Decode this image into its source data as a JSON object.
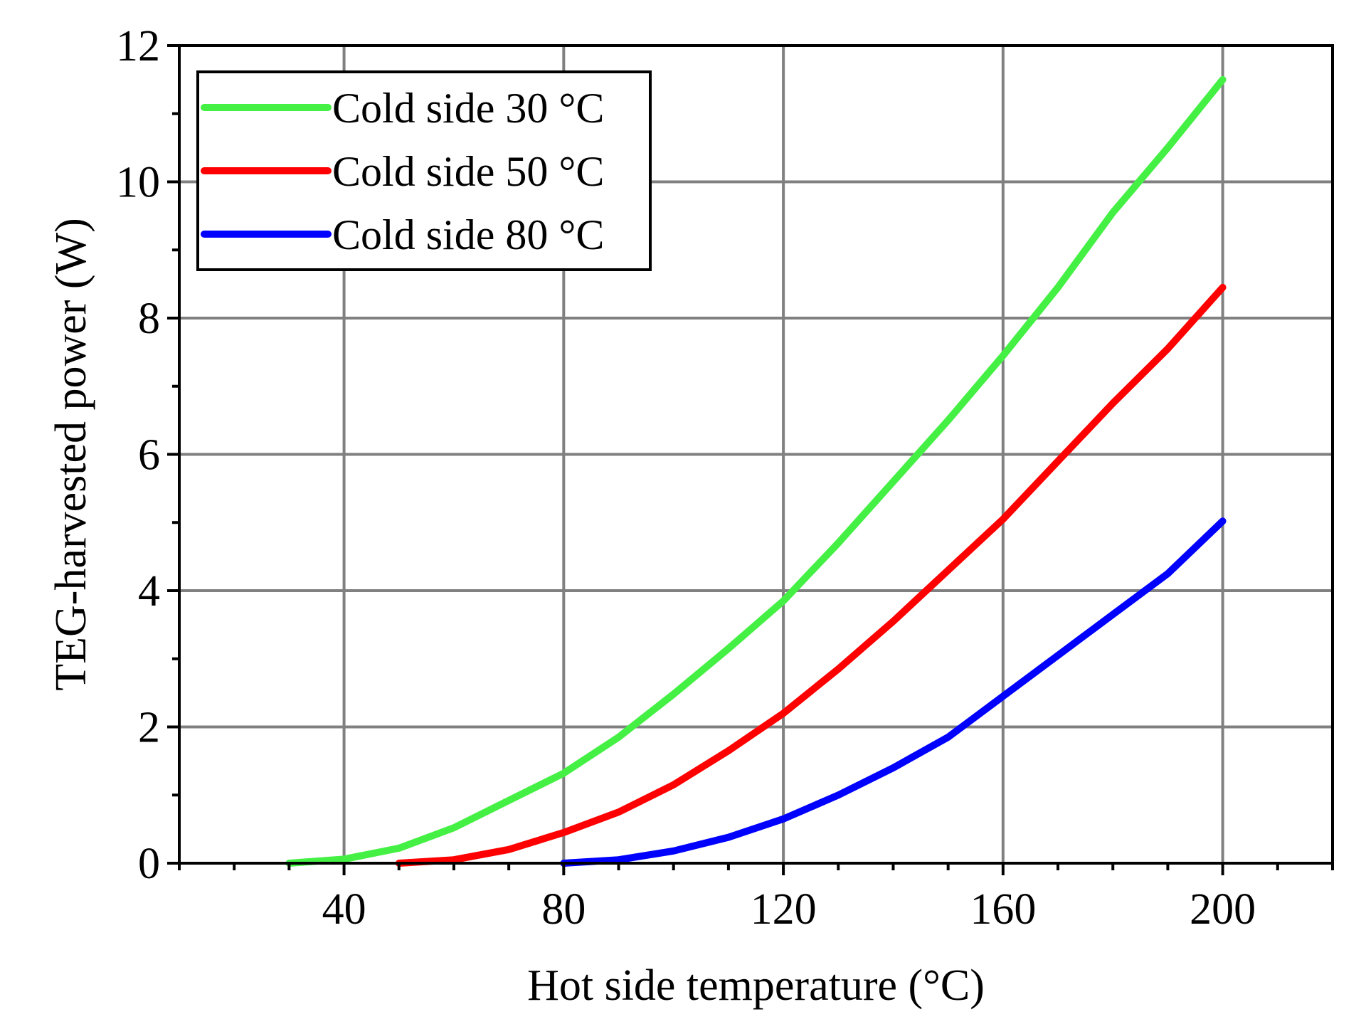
{
  "chart_data": {
    "type": "line",
    "title": "",
    "xlabel": "Hot side temperature (°C)",
    "ylabel": "TEG-harvested power (W)",
    "xlim": [
      10,
      220
    ],
    "ylim": [
      0,
      12
    ],
    "xticks": [
      40,
      80,
      120,
      160,
      200
    ],
    "xtick_labels": [
      "40",
      "80",
      "120",
      "160",
      "200"
    ],
    "yticks": [
      0,
      2,
      4,
      6,
      8,
      10,
      12
    ],
    "ytick_labels": [
      "0",
      "2",
      "4",
      "6",
      "8",
      "10",
      "12"
    ],
    "x_minor_step": 10,
    "y_minor_step": 1,
    "grid": true,
    "legend_position": "top-left",
    "series": [
      {
        "name": "Cold side 30 °C",
        "color": "#44f044",
        "x": [
          30,
          40,
          50,
          60,
          70,
          80,
          90,
          100,
          110,
          120,
          130,
          140,
          150,
          160,
          170,
          180,
          190,
          200
        ],
        "y": [
          0.0,
          0.06,
          0.22,
          0.52,
          0.92,
          1.32,
          1.85,
          2.48,
          3.15,
          3.85,
          4.7,
          5.6,
          6.5,
          7.45,
          8.45,
          9.55,
          10.5,
          11.5
        ]
      },
      {
        "name": "Cold side 50 °C",
        "color": "#ff0000",
        "x": [
          50,
          60,
          70,
          80,
          90,
          100,
          110,
          120,
          130,
          140,
          150,
          160,
          170,
          180,
          190,
          200
        ],
        "y": [
          0.0,
          0.05,
          0.2,
          0.45,
          0.75,
          1.15,
          1.65,
          2.2,
          2.85,
          3.55,
          4.3,
          5.05,
          5.9,
          6.75,
          7.55,
          8.45
        ]
      },
      {
        "name": "Cold side 80 °C",
        "color": "#0000ff",
        "x": [
          80,
          90,
          100,
          110,
          120,
          130,
          140,
          150,
          160,
          170,
          180,
          190,
          200
        ],
        "y": [
          0.0,
          0.05,
          0.18,
          0.38,
          0.65,
          1.0,
          1.4,
          1.85,
          2.45,
          3.05,
          3.65,
          4.25,
          5.02
        ]
      }
    ]
  }
}
